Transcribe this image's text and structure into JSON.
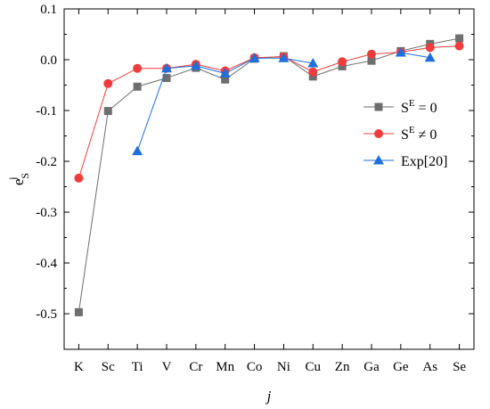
{
  "chart_data": {
    "type": "line",
    "xlabel": "j",
    "ylabel": {
      "base": "e",
      "sub": "S",
      "sup": "j"
    },
    "categories": [
      "K",
      "Sc",
      "Ti",
      "V",
      "Cr",
      "Mn",
      "Co",
      "Ni",
      "Cu",
      "Zn",
      "Ga",
      "Ge",
      "As",
      "Se"
    ],
    "ylim": [
      -0.57,
      0.1
    ],
    "yticks": [
      0.1,
      0.0,
      -0.1,
      -0.2,
      -0.3,
      -0.4,
      -0.5
    ],
    "ytick_labels": [
      "0.1",
      "0.0",
      "-0.1",
      "-0.2",
      "-0.3",
      "-0.4",
      "-0.5"
    ],
    "grid": false,
    "legend_position": "right",
    "series": [
      {
        "name": "S^E = 0",
        "label": {
          "base": "S",
          "sup": "E",
          "rest": " = 0"
        },
        "color": "#6e6e6e",
        "marker": "square",
        "values": [
          -0.497,
          -0.101,
          -0.053,
          -0.036,
          -0.016,
          -0.039,
          0.002,
          0.007,
          -0.033,
          -0.013,
          -0.002,
          0.017,
          0.031,
          0.042
        ]
      },
      {
        "name": "S^E ≠ 0",
        "label": {
          "base": "S",
          "sup": "E",
          "rest": " ≠ 0"
        },
        "color": "#f03c3c",
        "marker": "circle",
        "values": [
          -0.233,
          -0.047,
          -0.017,
          -0.017,
          -0.009,
          -0.022,
          0.004,
          0.006,
          -0.024,
          -0.004,
          0.011,
          0.015,
          0.024,
          0.027
        ]
      },
      {
        "name": "Exp[20]",
        "label": {
          "base": "Exp[20]",
          "sup": "",
          "rest": ""
        },
        "color": "#1f6fdc",
        "marker": "triangle",
        "values": [
          null,
          null,
          -0.18,
          -0.017,
          -0.012,
          -0.027,
          0.003,
          0.003,
          -0.007,
          null,
          null,
          0.014,
          0.004,
          null
        ]
      }
    ]
  }
}
